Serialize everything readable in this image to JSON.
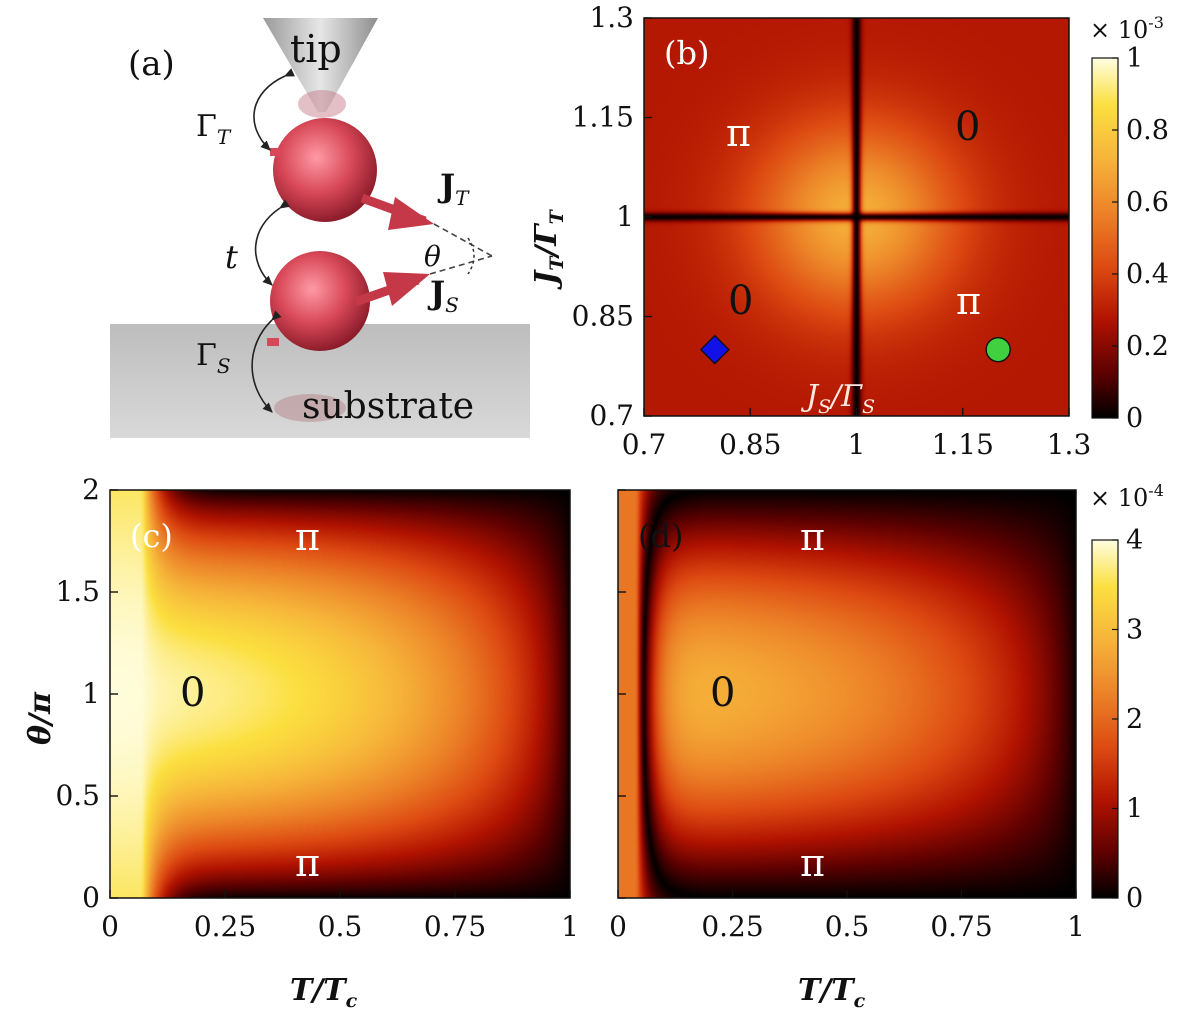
{
  "panel_a": {
    "label": "(a)",
    "tip": "tip",
    "substrate": "substrate",
    "gamma_t": {
      "main": "Γ",
      "sub": "T"
    },
    "gamma_s": {
      "main": "Γ",
      "sub": "S"
    },
    "hopping": "t",
    "j_t": {
      "main": "J",
      "sub": "T"
    },
    "j_s": {
      "main": "J",
      "sub": "S"
    },
    "theta": "θ"
  },
  "panel_b": {
    "label": "(b)",
    "region_labels": [
      "π",
      "0",
      "0",
      "π"
    ],
    "colorbar_exponent": "× 10",
    "colorbar_exponent_power": "-3",
    "colorbar_ticks": [
      "1",
      "0.8",
      "0.6",
      "0.4",
      "0.2",
      "0"
    ]
  },
  "panel_c": {
    "label": "(c)",
    "region_labels": [
      "π",
      "0",
      "π"
    ]
  },
  "panel_d": {
    "label": "(d)",
    "region_labels": [
      "π",
      "0",
      "π"
    ],
    "colorbar_exponent": "× 10",
    "colorbar_exponent_power": "-4",
    "colorbar_ticks": [
      "4",
      "3",
      "2",
      "1",
      "0"
    ]
  },
  "colors": {
    "colormap": [
      "#000000",
      "#5a0000",
      "#b01200",
      "#dd4a12",
      "#ec8228",
      "#f6b43a",
      "#fbe040",
      "#fffde0"
    ],
    "diamond": "#1212e8",
    "circle": "#40d040",
    "panel_a_sphere": "#d84858",
    "panel_a_substrate": "#c8c8c8"
  },
  "chart_data": [
    {
      "type": "heatmap",
      "panel": "(b)",
      "title": "",
      "xlabel": {
        "main": "J",
        "sub": "S",
        "mid": "/Γ",
        "sub2": "S"
      },
      "ylabel": {
        "main": "J",
        "sub": "T",
        "mid": "/Γ",
        "sub2": "T"
      },
      "xlim": [
        0.7,
        1.3
      ],
      "ylim": [
        0.7,
        1.3
      ],
      "xticks": [
        "0.7",
        "0.85",
        "1",
        "1.15",
        "1.3"
      ],
      "yticks": [
        "0.7",
        "0.85",
        "1",
        "1.15",
        "1.3"
      ],
      "colorbar_range": [
        0,
        0.001
      ],
      "zero_lines": {
        "x": 1,
        "y": 1
      },
      "peak_value": 0.0007,
      "markers": [
        {
          "shape": "diamond",
          "x": 0.8,
          "y": 0.8
        },
        {
          "shape": "circle",
          "x": 1.2,
          "y": 0.8
        }
      ]
    },
    {
      "type": "heatmap",
      "panel": "(c)",
      "title": "",
      "xlabel": {
        "main": "T",
        "mid": "/T",
        "sub2": "c"
      },
      "ylabel": {
        "main": "θ",
        "mid": "/π"
      },
      "xlim": [
        0,
        1
      ],
      "ylim": [
        0,
        2
      ],
      "xticks": [
        "0",
        "0.25",
        "0.5",
        "0.75",
        "1"
      ],
      "yticks": [
        "0",
        "0.5",
        "1",
        "1.5",
        "2"
      ],
      "colorbar_range": [
        0,
        0.0004
      ],
      "zero_line_asymptotes": [
        0.5,
        1.5
      ],
      "zero_line_onset_T": 0.07
    },
    {
      "type": "heatmap",
      "panel": "(d)",
      "title": "",
      "xlabel": {
        "main": "T",
        "mid": "/T",
        "sub2": "c"
      },
      "ylabel": {
        "main": "θ",
        "mid": "/π"
      },
      "xlim": [
        0,
        1
      ],
      "ylim": [
        0,
        2
      ],
      "xticks": [
        "0",
        "0.25",
        "0.5",
        "0.75",
        "1"
      ],
      "yticks": [
        "0",
        "0.5",
        "1",
        "1.5",
        "2"
      ],
      "colorbar_range": [
        0,
        0.0004
      ],
      "zero_line_asymptotes": [
        0.5,
        1.5
      ],
      "zero_line_vertex_T": 0.04
    }
  ]
}
